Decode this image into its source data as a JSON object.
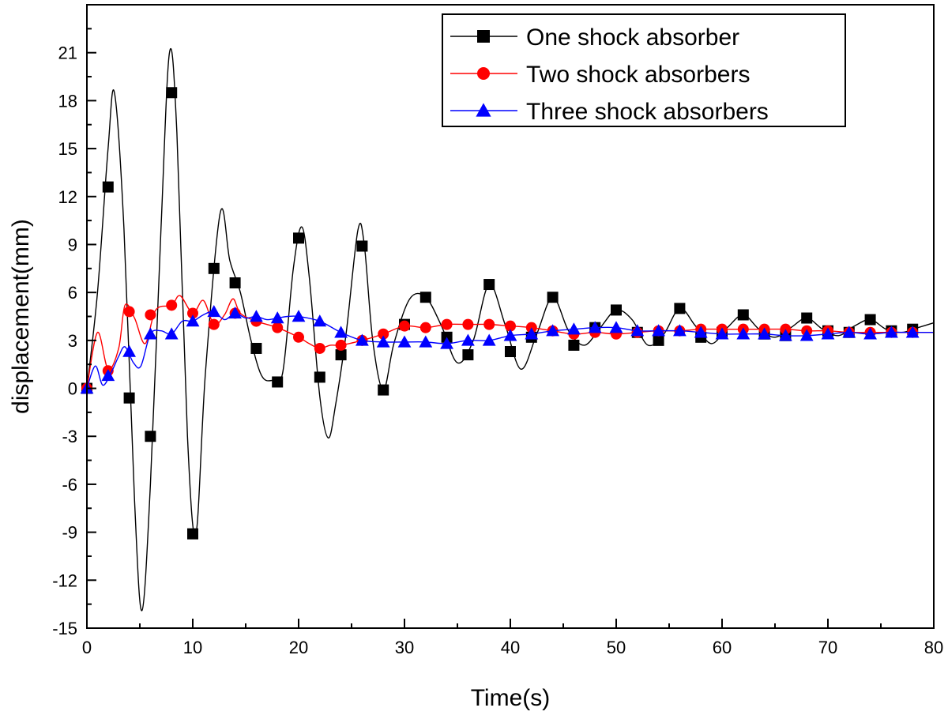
{
  "chart_data": {
    "type": "line",
    "title": "",
    "xlabel": "Time(s)",
    "ylabel": "displacement(mm)",
    "xlim": [
      0,
      80
    ],
    "ylim": [
      -15,
      24
    ],
    "x_ticks": [
      0,
      10,
      20,
      30,
      40,
      50,
      60,
      70,
      80
    ],
    "y_ticks": [
      -15,
      -12,
      -9,
      -6,
      -3,
      0,
      3,
      6,
      9,
      12,
      15,
      18,
      21
    ],
    "grid": false,
    "legend_position": "top-right",
    "series": [
      {
        "name": "One shock absorber",
        "color": "#000000",
        "marker": "square",
        "x": [
          0,
          2,
          4,
          6,
          8,
          10,
          12,
          14,
          16,
          18,
          20,
          22,
          24,
          26,
          28,
          30,
          32,
          34,
          36,
          38,
          40,
          42,
          44,
          46,
          48,
          50,
          52,
          54,
          56,
          58,
          60,
          62,
          64,
          66,
          68,
          70,
          72,
          74,
          76,
          78
        ],
        "y": [
          0,
          12.6,
          -0.6,
          -3.0,
          18.5,
          -9.1,
          7.5,
          6.6,
          2.5,
          0.4,
          9.4,
          0.7,
          2.1,
          8.9,
          -0.1,
          4.0,
          5.7,
          3.2,
          2.1,
          6.5,
          2.3,
          3.2,
          5.7,
          2.7,
          3.8,
          4.9,
          3.5,
          3.0,
          5.0,
          3.2,
          3.5,
          4.6,
          3.4,
          3.3,
          4.4,
          3.6,
          3.5,
          4.3,
          3.6,
          3.7
        ],
        "curve": [
          [
            0,
            0
          ],
          [
            1,
            6
          ],
          [
            2,
            15
          ],
          [
            2.6,
            18.5
          ],
          [
            3.5,
            10
          ],
          [
            4.5,
            -7
          ],
          [
            5.2,
            -13.9
          ],
          [
            6,
            -6
          ],
          [
            7,
            10
          ],
          [
            7.8,
            21
          ],
          [
            8.5,
            16
          ],
          [
            9.5,
            -3
          ],
          [
            10.3,
            -9.1
          ],
          [
            11.2,
            1
          ],
          [
            12.6,
            11
          ],
          [
            13.5,
            8
          ],
          [
            14.5,
            6
          ],
          [
            15.5,
            3
          ],
          [
            16.5,
            0.8
          ],
          [
            17.5,
            0.5
          ],
          [
            18.5,
            1
          ],
          [
            19.5,
            7.5
          ],
          [
            20.3,
            10.1
          ],
          [
            21,
            7
          ],
          [
            22,
            -0.5
          ],
          [
            22.8,
            -3.1
          ],
          [
            23.5,
            -1
          ],
          [
            24.5,
            3.5
          ],
          [
            25.6,
            9.9
          ],
          [
            26.2,
            9
          ],
          [
            27,
            3
          ],
          [
            28,
            -0.1
          ],
          [
            29,
            2.8
          ],
          [
            30.5,
            5.6
          ],
          [
            32,
            5.7
          ],
          [
            33.5,
            3.9
          ],
          [
            35,
            1.6
          ],
          [
            36.5,
            3
          ],
          [
            38,
            6.5
          ],
          [
            39.5,
            4
          ],
          [
            41,
            1.2
          ],
          [
            42.5,
            3.4
          ],
          [
            44,
            5.7
          ],
          [
            45.5,
            3.6
          ],
          [
            47,
            2.7
          ],
          [
            48.5,
            3.8
          ],
          [
            50,
            4.9
          ],
          [
            51.5,
            4.3
          ],
          [
            53,
            2.7
          ],
          [
            54.5,
            3.4
          ],
          [
            56,
            5.0
          ],
          [
            57.5,
            3.9
          ],
          [
            59,
            2.8
          ],
          [
            60.5,
            3.8
          ],
          [
            62,
            4.6
          ],
          [
            63.5,
            3.7
          ],
          [
            65,
            3.2
          ],
          [
            66.5,
            3.8
          ],
          [
            68,
            4.4
          ],
          [
            69.5,
            3.7
          ],
          [
            71,
            3.3
          ],
          [
            72.5,
            3.9
          ],
          [
            74,
            4.3
          ],
          [
            75.5,
            3.7
          ],
          [
            77,
            3.5
          ],
          [
            78.5,
            3.8
          ],
          [
            80,
            4.1
          ]
        ]
      },
      {
        "name": "Two shock absorbers",
        "color": "#ff0000",
        "marker": "circle",
        "x": [
          0,
          2,
          4,
          6,
          8,
          10,
          12,
          14,
          16,
          18,
          20,
          22,
          24,
          26,
          28,
          30,
          32,
          34,
          36,
          38,
          40,
          42,
          44,
          46,
          48,
          50,
          52,
          54,
          56,
          58,
          60,
          62,
          64,
          66,
          68,
          70,
          72,
          74,
          76,
          78
        ],
        "y": [
          0,
          1.1,
          4.8,
          4.6,
          5.2,
          4.7,
          4.0,
          4.7,
          4.2,
          3.8,
          3.2,
          2.5,
          2.7,
          3.0,
          3.4,
          3.9,
          3.8,
          4.0,
          4.0,
          4.0,
          3.9,
          3.8,
          3.6,
          3.4,
          3.5,
          3.4,
          3.5,
          3.6,
          3.6,
          3.7,
          3.7,
          3.7,
          3.7,
          3.7,
          3.6,
          3.6,
          3.5,
          3.5,
          3.5,
          3.5
        ],
        "curve": [
          [
            0,
            0
          ],
          [
            1,
            3.5
          ],
          [
            2,
            1.2
          ],
          [
            3,
            2.5
          ],
          [
            3.6,
            5.2
          ],
          [
            4.5,
            4.4
          ],
          [
            5.5,
            2.8
          ],
          [
            6.5,
            4.9
          ],
          [
            8,
            5.2
          ],
          [
            8.8,
            5.8
          ],
          [
            10,
            4.7
          ],
          [
            11,
            5.5
          ],
          [
            12,
            4.0
          ],
          [
            13,
            4.6
          ],
          [
            13.8,
            5.6
          ],
          [
            14.5,
            4.7
          ],
          [
            16,
            4.2
          ],
          [
            18,
            3.8
          ],
          [
            20,
            3.2
          ],
          [
            21,
            2.8
          ],
          [
            22,
            2.5
          ],
          [
            23,
            2.7
          ],
          [
            24,
            2.7
          ],
          [
            26,
            3.0
          ],
          [
            28,
            3.4
          ],
          [
            30,
            3.9
          ],
          [
            32,
            3.8
          ],
          [
            34,
            4.0
          ],
          [
            36,
            4.0
          ],
          [
            38,
            4.0
          ],
          [
            40,
            3.9
          ],
          [
            42,
            3.8
          ],
          [
            44,
            3.6
          ],
          [
            46,
            3.4
          ],
          [
            48,
            3.5
          ],
          [
            50,
            3.4
          ],
          [
            52,
            3.5
          ],
          [
            54,
            3.6
          ],
          [
            56,
            3.6
          ],
          [
            58,
            3.7
          ],
          [
            60,
            3.7
          ],
          [
            62,
            3.7
          ],
          [
            64,
            3.7
          ],
          [
            66,
            3.7
          ],
          [
            68,
            3.6
          ],
          [
            70,
            3.6
          ],
          [
            72,
            3.5
          ],
          [
            74,
            3.5
          ],
          [
            76,
            3.5
          ],
          [
            78,
            3.5
          ],
          [
            80,
            3.5
          ]
        ]
      },
      {
        "name": "Three shock absorbers",
        "color": "#0000ff",
        "marker": "triangle",
        "x": [
          0,
          2,
          4,
          6,
          8,
          10,
          12,
          14,
          16,
          18,
          20,
          22,
          24,
          26,
          28,
          30,
          32,
          34,
          36,
          38,
          40,
          42,
          44,
          46,
          48,
          50,
          52,
          54,
          56,
          58,
          60,
          62,
          64,
          66,
          68,
          70,
          72,
          74,
          76,
          78
        ],
        "y": [
          0,
          0.8,
          2.3,
          3.4,
          3.4,
          4.2,
          4.8,
          4.7,
          4.5,
          4.4,
          4.5,
          4.2,
          3.5,
          3.0,
          2.9,
          2.9,
          2.9,
          2.8,
          3.0,
          3.0,
          3.3,
          3.4,
          3.6,
          3.7,
          3.8,
          3.8,
          3.6,
          3.6,
          3.6,
          3.5,
          3.4,
          3.4,
          3.4,
          3.3,
          3.3,
          3.4,
          3.5,
          3.4,
          3.5,
          3.5
        ],
        "curve": [
          [
            0,
            0
          ],
          [
            0.8,
            1.4
          ],
          [
            1.5,
            0.2
          ],
          [
            2.3,
            1.0
          ],
          [
            3,
            2.0
          ],
          [
            3.6,
            2.6
          ],
          [
            4.4,
            1.6
          ],
          [
            5.1,
            1.4
          ],
          [
            6,
            3.4
          ],
          [
            7,
            3.6
          ],
          [
            8,
            3.4
          ],
          [
            9,
            4.2
          ],
          [
            10,
            4.2
          ],
          [
            11,
            4.6
          ],
          [
            12,
            4.8
          ],
          [
            13,
            4.3
          ],
          [
            14,
            4.7
          ],
          [
            15,
            4.4
          ],
          [
            16,
            4.5
          ],
          [
            17,
            4.3
          ],
          [
            18,
            4.4
          ],
          [
            19,
            4.5
          ],
          [
            20,
            4.5
          ],
          [
            22,
            4.2
          ],
          [
            24,
            3.5
          ],
          [
            26,
            3.0
          ],
          [
            28,
            2.9
          ],
          [
            30,
            2.9
          ],
          [
            32,
            2.9
          ],
          [
            34,
            2.8
          ],
          [
            36,
            3.0
          ],
          [
            38,
            3.0
          ],
          [
            40,
            3.3
          ],
          [
            42,
            3.4
          ],
          [
            44,
            3.6
          ],
          [
            46,
            3.7
          ],
          [
            48,
            3.8
          ],
          [
            50,
            3.8
          ],
          [
            52,
            3.6
          ],
          [
            54,
            3.6
          ],
          [
            56,
            3.6
          ],
          [
            58,
            3.5
          ],
          [
            60,
            3.4
          ],
          [
            62,
            3.4
          ],
          [
            64,
            3.4
          ],
          [
            66,
            3.3
          ],
          [
            68,
            3.3
          ],
          [
            70,
            3.4
          ],
          [
            72,
            3.5
          ],
          [
            74,
            3.4
          ],
          [
            76,
            3.5
          ],
          [
            78,
            3.5
          ],
          [
            80,
            3.5
          ]
        ]
      }
    ]
  }
}
